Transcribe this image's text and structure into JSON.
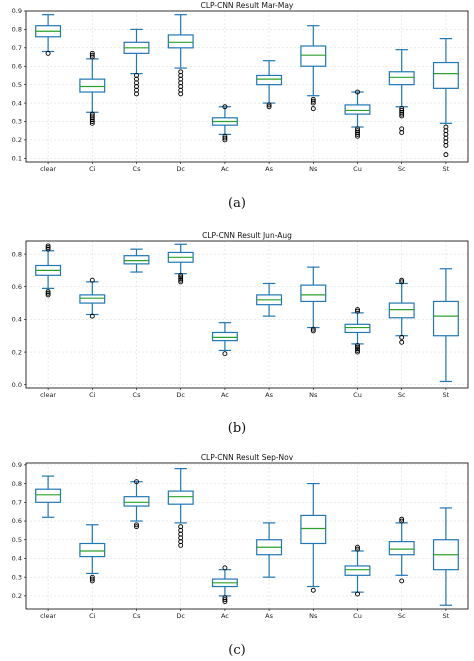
{
  "chart_data": [
    {
      "type": "box",
      "title": "CLP-CNN Result Mar-May",
      "caption": "(a)",
      "categories": [
        "clear",
        "Ci",
        "Cs",
        "Dc",
        "Ac",
        "As",
        "Ns",
        "Cu",
        "Sc",
        "St"
      ],
      "yticks": [
        0.1,
        0.2,
        0.3,
        0.4,
        0.5,
        0.6,
        0.7,
        0.8,
        0.9
      ],
      "ylim": [
        0.08,
        0.9
      ],
      "grid": true,
      "boxes": [
        {
          "whislo": 0.68,
          "q1": 0.76,
          "med": 0.79,
          "q3": 0.82,
          "whishi": 0.88,
          "fliers": [
            0.67
          ]
        },
        {
          "whislo": 0.35,
          "q1": 0.46,
          "med": 0.49,
          "q3": 0.53,
          "whishi": 0.64,
          "fliers": [
            0.29,
            0.3,
            0.31,
            0.32,
            0.33,
            0.34,
            0.65,
            0.66,
            0.67
          ]
        },
        {
          "whislo": 0.56,
          "q1": 0.67,
          "med": 0.7,
          "q3": 0.73,
          "whishi": 0.8,
          "fliers": [
            0.45,
            0.47,
            0.49,
            0.51,
            0.53,
            0.55
          ]
        },
        {
          "whislo": 0.59,
          "q1": 0.7,
          "med": 0.73,
          "q3": 0.77,
          "whishi": 0.88,
          "fliers": [
            0.45,
            0.47,
            0.49,
            0.51,
            0.53,
            0.55,
            0.57
          ]
        },
        {
          "whislo": 0.23,
          "q1": 0.28,
          "med": 0.3,
          "q3": 0.32,
          "whishi": 0.38,
          "fliers": [
            0.2,
            0.21,
            0.22,
            0.38
          ]
        },
        {
          "whislo": 0.4,
          "q1": 0.5,
          "med": 0.53,
          "q3": 0.55,
          "whishi": 0.63,
          "fliers": [
            0.38,
            0.39
          ]
        },
        {
          "whislo": 0.44,
          "q1": 0.6,
          "med": 0.66,
          "q3": 0.71,
          "whishi": 0.82,
          "fliers": [
            0.37,
            0.4,
            0.41,
            0.42
          ]
        },
        {
          "whislo": 0.27,
          "q1": 0.34,
          "med": 0.36,
          "q3": 0.39,
          "whishi": 0.46,
          "fliers": [
            0.22,
            0.23,
            0.24,
            0.25,
            0.26,
            0.46
          ]
        },
        {
          "whislo": 0.38,
          "q1": 0.5,
          "med": 0.54,
          "q3": 0.57,
          "whishi": 0.69,
          "fliers": [
            0.24,
            0.26,
            0.33,
            0.34,
            0.35,
            0.36,
            0.37
          ]
        },
        {
          "whislo": 0.29,
          "q1": 0.48,
          "med": 0.56,
          "q3": 0.62,
          "whishi": 0.75,
          "fliers": [
            0.12,
            0.17,
            0.19,
            0.21,
            0.23,
            0.25,
            0.27
          ]
        }
      ]
    },
    {
      "type": "box",
      "title": "CLP-CNN Result Jun-Aug",
      "caption": "(b)",
      "categories": [
        "clear",
        "Ci",
        "Cs",
        "Dc",
        "Ac",
        "As",
        "Ns",
        "Cu",
        "Sc",
        "St"
      ],
      "yticks": [
        0.0,
        0.2,
        0.4,
        0.6,
        0.8
      ],
      "ylim": [
        -0.02,
        0.88
      ],
      "grid": true,
      "boxes": [
        {
          "whislo": 0.59,
          "q1": 0.67,
          "med": 0.7,
          "q3": 0.73,
          "whishi": 0.82,
          "fliers": [
            0.55,
            0.56,
            0.57,
            0.83,
            0.84,
            0.85
          ]
        },
        {
          "whislo": 0.43,
          "q1": 0.5,
          "med": 0.53,
          "q3": 0.55,
          "whishi": 0.63,
          "fliers": [
            0.42,
            0.64
          ]
        },
        {
          "whislo": 0.69,
          "q1": 0.74,
          "med": 0.76,
          "q3": 0.79,
          "whishi": 0.83,
          "fliers": []
        },
        {
          "whislo": 0.68,
          "q1": 0.75,
          "med": 0.78,
          "q3": 0.81,
          "whishi": 0.86,
          "fliers": [
            0.63,
            0.64,
            0.65,
            0.66,
            0.67
          ]
        },
        {
          "whislo": 0.21,
          "q1": 0.27,
          "med": 0.29,
          "q3": 0.32,
          "whishi": 0.38,
          "fliers": [
            0.19
          ]
        },
        {
          "whislo": 0.42,
          "q1": 0.49,
          "med": 0.52,
          "q3": 0.55,
          "whishi": 0.62,
          "fliers": []
        },
        {
          "whislo": 0.35,
          "q1": 0.51,
          "med": 0.55,
          "q3": 0.61,
          "whishi": 0.72,
          "fliers": [
            0.33,
            0.34
          ]
        },
        {
          "whislo": 0.25,
          "q1": 0.32,
          "med": 0.35,
          "q3": 0.37,
          "whishi": 0.44,
          "fliers": [
            0.2,
            0.21,
            0.22,
            0.23,
            0.24,
            0.45,
            0.46
          ]
        },
        {
          "whislo": 0.3,
          "q1": 0.41,
          "med": 0.46,
          "q3": 0.5,
          "whishi": 0.62,
          "fliers": [
            0.26,
            0.29,
            0.63,
            0.64
          ]
        },
        {
          "whislo": 0.02,
          "q1": 0.3,
          "med": 0.42,
          "q3": 0.51,
          "whishi": 0.71,
          "fliers": []
        }
      ]
    },
    {
      "type": "box",
      "title": "CLP-CNN Result Sep-Nov",
      "caption": "(c)",
      "categories": [
        "clear",
        "Ci",
        "Cs",
        "Dc",
        "Ac",
        "As",
        "Ns",
        "Cu",
        "Sc",
        "St"
      ],
      "yticks": [
        0.2,
        0.3,
        0.4,
        0.5,
        0.6,
        0.7,
        0.8,
        0.9
      ],
      "ylim": [
        0.13,
        0.91
      ],
      "grid": true,
      "boxes": [
        {
          "whislo": 0.62,
          "q1": 0.7,
          "med": 0.74,
          "q3": 0.77,
          "whishi": 0.84,
          "fliers": []
        },
        {
          "whislo": 0.32,
          "q1": 0.41,
          "med": 0.44,
          "q3": 0.48,
          "whishi": 0.58,
          "fliers": [
            0.28,
            0.29,
            0.3
          ]
        },
        {
          "whislo": 0.6,
          "q1": 0.68,
          "med": 0.7,
          "q3": 0.73,
          "whishi": 0.81,
          "fliers": [
            0.57,
            0.58,
            0.81
          ]
        },
        {
          "whislo": 0.59,
          "q1": 0.69,
          "med": 0.73,
          "q3": 0.76,
          "whishi": 0.88,
          "fliers": [
            0.47,
            0.49,
            0.51,
            0.53,
            0.55,
            0.57
          ]
        },
        {
          "whislo": 0.2,
          "q1": 0.25,
          "med": 0.27,
          "q3": 0.29,
          "whishi": 0.34,
          "fliers": [
            0.17,
            0.18,
            0.19,
            0.35
          ]
        },
        {
          "whislo": 0.3,
          "q1": 0.42,
          "med": 0.46,
          "q3": 0.5,
          "whishi": 0.59,
          "fliers": []
        },
        {
          "whislo": 0.25,
          "q1": 0.48,
          "med": 0.56,
          "q3": 0.63,
          "whishi": 0.8,
          "fliers": [
            0.23
          ]
        },
        {
          "whislo": 0.22,
          "q1": 0.31,
          "med": 0.34,
          "q3": 0.36,
          "whishi": 0.44,
          "fliers": [
            0.21,
            0.45,
            0.46
          ]
        },
        {
          "whislo": 0.31,
          "q1": 0.42,
          "med": 0.45,
          "q3": 0.49,
          "whishi": 0.59,
          "fliers": [
            0.28,
            0.6,
            0.61
          ]
        },
        {
          "whislo": 0.15,
          "q1": 0.34,
          "med": 0.42,
          "q3": 0.5,
          "whishi": 0.67,
          "fliers": []
        }
      ]
    }
  ],
  "colors": {
    "box": "#1f77b4",
    "median": "#2ca02c",
    "flier": "#000000",
    "grid": "#dedede"
  }
}
